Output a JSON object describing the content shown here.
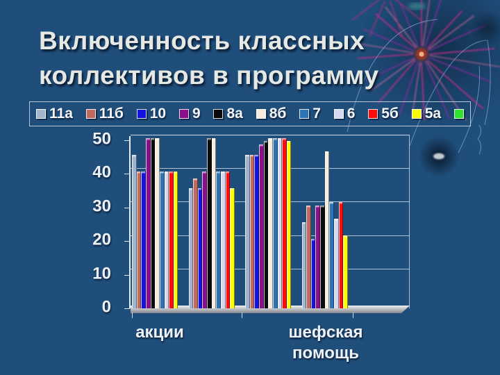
{
  "slide": {
    "title_line1": "Включенность классных",
    "title_line2": "коллективов в программу",
    "background_color": "#1f4e7b",
    "title_color": "#e6e8e3"
  },
  "legend": {
    "items": [
      {
        "label": "11а",
        "color": "#9fb6ce"
      },
      {
        "label": "11б",
        "color": "#c1695d"
      },
      {
        "label": "10",
        "color": "#1414e0"
      },
      {
        "label": "9",
        "color": "#8b0e8b"
      },
      {
        "label": "8а",
        "color": "#0a0a0a"
      },
      {
        "label": "8б",
        "color": "#f5eedc"
      },
      {
        "label": "7",
        "color": "#2e74b5"
      },
      {
        "label": "6",
        "color": "#d8d8f0"
      },
      {
        "label": "5б",
        "color": "#fd0d0d"
      },
      {
        "label": "5а",
        "color": "#fdfd05"
      },
      {
        "label": "",
        "color": "#2fe22f"
      }
    ]
  },
  "chart_data": {
    "type": "bar",
    "style": "3d-clustered-column",
    "title": "",
    "categories": [
      "акции",
      "",
      "",
      "шефская помощь"
    ],
    "visible_category_labels": [
      "акции",
      "шефская помощь"
    ],
    "series": [
      {
        "name": "11а",
        "color": "#9fb6ce",
        "values": [
          45,
          35,
          45,
          25
        ]
      },
      {
        "name": "11б",
        "color": "#c1695d",
        "values": [
          40,
          38,
          45,
          30
        ]
      },
      {
        "name": "10",
        "color": "#1414e0",
        "values": [
          40,
          35,
          45,
          20
        ]
      },
      {
        "name": "9",
        "color": "#8b0e8b",
        "values": [
          50,
          40,
          48,
          30
        ]
      },
      {
        "name": "8а",
        "color": "#0a0a0a",
        "values": [
          50,
          50,
          49,
          30
        ]
      },
      {
        "name": "8б",
        "color": "#f5eedc",
        "values": [
          50,
          50,
          50,
          46
        ]
      },
      {
        "name": "7",
        "color": "#2e74b5",
        "values": [
          40,
          40,
          50,
          31
        ]
      },
      {
        "name": "6",
        "color": "#d8d8f0",
        "values": [
          40,
          40,
          50,
          26
        ]
      },
      {
        "name": "5б",
        "color": "#fd0d0d",
        "values": [
          40,
          40,
          50,
          31
        ]
      },
      {
        "name": "5а",
        "color": "#fdfd05",
        "values": [
          40,
          35,
          49,
          21
        ]
      }
    ],
    "xlabel": "",
    "ylabel": "",
    "ylim": [
      0,
      50
    ],
    "y_ticks": [
      0,
      10,
      20,
      30,
      40,
      50
    ],
    "grid": true,
    "legend_position": "top"
  }
}
